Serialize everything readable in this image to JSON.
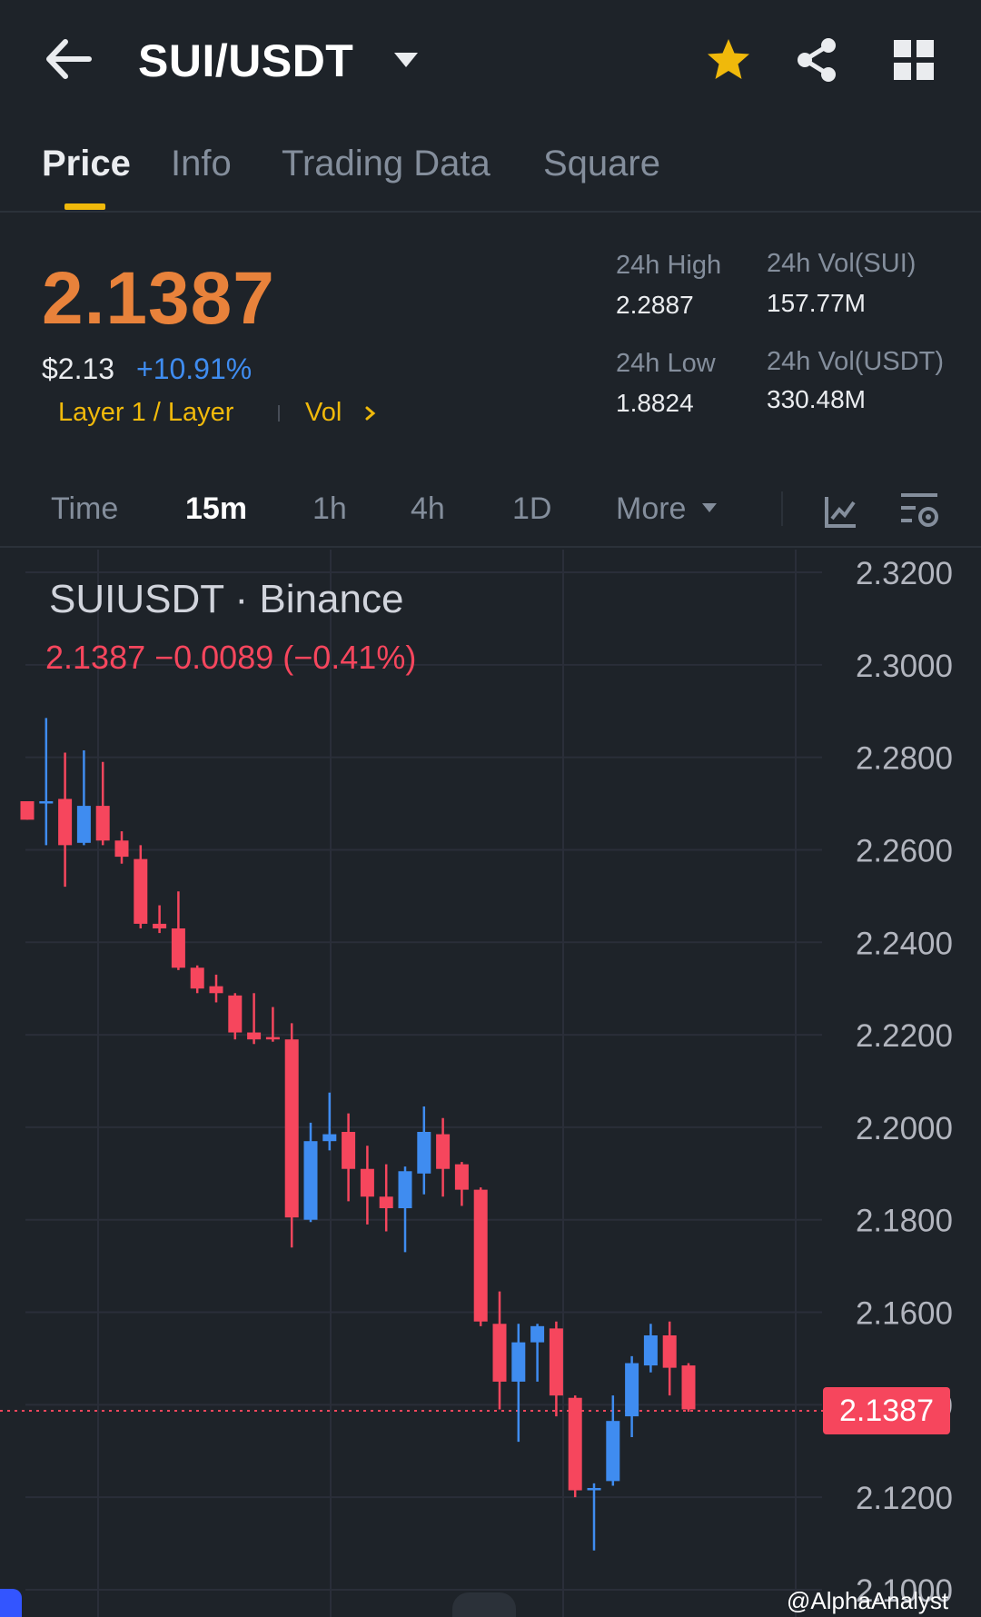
{
  "header": {
    "pair": "SUI/USDT",
    "icons": [
      "back-arrow-icon",
      "dropdown-caret-icon",
      "favorite-star-icon",
      "share-icon",
      "apps-grid-icon"
    ],
    "star_color": "#f0b90b"
  },
  "tabs": [
    {
      "label": "Price",
      "active": true
    },
    {
      "label": "Info",
      "active": false
    },
    {
      "label": "Trading Data",
      "active": false
    },
    {
      "label": "Square",
      "active": false
    }
  ],
  "price": {
    "last": "2.1387",
    "fiat": "$2.13",
    "change_pct": "+10.91%",
    "category": "Layer 1 / Layer",
    "vol_link": "Vol",
    "color": "#e8823b"
  },
  "stats": {
    "high_label": "24h High",
    "high_value": "2.2887",
    "low_label": "24h Low",
    "low_value": "1.8824",
    "vol_base_label": "24h Vol(SUI)",
    "vol_base_value": "157.77M",
    "vol_quote_label": "24h Vol(USDT)",
    "vol_quote_value": "330.48M"
  },
  "intervals": [
    {
      "label": "Time",
      "active": false
    },
    {
      "label": "15m",
      "active": true
    },
    {
      "label": "1h",
      "active": false
    },
    {
      "label": "4h",
      "active": false
    },
    {
      "label": "1D",
      "active": false
    },
    {
      "label": "More",
      "active": false
    }
  ],
  "chart_meta": {
    "symbol": "SUIUSDT · Binance",
    "ohlc_line": "2.1387  −0.0089 (−0.41%)",
    "current_price_tag": "2.1387",
    "watermark": "@AlphaAnalyst",
    "up_color": "#3f8cf0",
    "down_color": "#f6465d"
  },
  "chart_data": {
    "type": "candlestick",
    "interval": "15m",
    "ylim": [
      2.1,
      2.32
    ],
    "y_ticks": [
      "2.3200",
      "2.3000",
      "2.2800",
      "2.2600",
      "2.2400",
      "2.2200",
      "2.2000",
      "2.1800",
      "2.1600",
      "2.1400",
      "2.1200",
      "2.1000"
    ],
    "current_price": 2.1387,
    "candles": [
      {
        "o": 2.2705,
        "h": 2.2705,
        "l": 2.2665,
        "c": 2.2665
      },
      {
        "o": 2.2705,
        "h": 2.2885,
        "l": 2.261,
        "c": 2.2705
      },
      {
        "o": 2.271,
        "h": 2.281,
        "l": 2.252,
        "c": 2.261
      },
      {
        "o": 2.2615,
        "h": 2.2815,
        "l": 2.261,
        "c": 2.2695
      },
      {
        "o": 2.2695,
        "h": 2.279,
        "l": 2.261,
        "c": 2.262
      },
      {
        "o": 2.262,
        "h": 2.264,
        "l": 2.257,
        "c": 2.2585
      },
      {
        "o": 2.258,
        "h": 2.261,
        "l": 2.243,
        "c": 2.244
      },
      {
        "o": 2.244,
        "h": 2.248,
        "l": 2.242,
        "c": 2.243
      },
      {
        "o": 2.243,
        "h": 2.251,
        "l": 2.234,
        "c": 2.2345
      },
      {
        "o": 2.2345,
        "h": 2.235,
        "l": 2.229,
        "c": 2.23
      },
      {
        "o": 2.2305,
        "h": 2.233,
        "l": 2.227,
        "c": 2.229
      },
      {
        "o": 2.2285,
        "h": 2.229,
        "l": 2.219,
        "c": 2.2205
      },
      {
        "o": 2.2205,
        "h": 2.229,
        "l": 2.218,
        "c": 2.219
      },
      {
        "o": 2.2195,
        "h": 2.226,
        "l": 2.2185,
        "c": 2.219
      },
      {
        "o": 2.219,
        "h": 2.2225,
        "l": 2.174,
        "c": 2.1805
      },
      {
        "o": 2.18,
        "h": 2.201,
        "l": 2.1795,
        "c": 2.197
      },
      {
        "o": 2.197,
        "h": 2.2075,
        "l": 2.195,
        "c": 2.1985
      },
      {
        "o": 2.199,
        "h": 2.203,
        "l": 2.184,
        "c": 2.191
      },
      {
        "o": 2.191,
        "h": 2.196,
        "l": 2.179,
        "c": 2.185
      },
      {
        "o": 2.185,
        "h": 2.192,
        "l": 2.1775,
        "c": 2.1825
      },
      {
        "o": 2.1825,
        "h": 2.1915,
        "l": 2.173,
        "c": 2.1905
      },
      {
        "o": 2.19,
        "h": 2.2045,
        "l": 2.1855,
        "c": 2.199
      },
      {
        "o": 2.1985,
        "h": 2.202,
        "l": 2.185,
        "c": 2.191
      },
      {
        "o": 2.192,
        "h": 2.1925,
        "l": 2.183,
        "c": 2.1865
      },
      {
        "o": 2.1865,
        "h": 2.187,
        "l": 2.157,
        "c": 2.158
      },
      {
        "o": 2.1575,
        "h": 2.1645,
        "l": 2.139,
        "c": 2.145
      },
      {
        "o": 2.145,
        "h": 2.1575,
        "l": 2.132,
        "c": 2.1535
      },
      {
        "o": 2.1535,
        "h": 2.1575,
        "l": 2.145,
        "c": 2.157
      },
      {
        "o": 2.1565,
        "h": 2.158,
        "l": 2.1375,
        "c": 2.142
      },
      {
        "o": 2.1415,
        "h": 2.142,
        "l": 2.12,
        "c": 2.1215
      },
      {
        "o": 2.122,
        "h": 2.123,
        "l": 2.1085,
        "c": 2.122
      },
      {
        "o": 2.1235,
        "h": 2.142,
        "l": 2.1225,
        "c": 2.1365
      },
      {
        "o": 2.1375,
        "h": 2.1505,
        "l": 2.133,
        "c": 2.149
      },
      {
        "o": 2.1485,
        "h": 2.1575,
        "l": 2.147,
        "c": 2.155
      },
      {
        "o": 2.155,
        "h": 2.158,
        "l": 2.142,
        "c": 2.148
      },
      {
        "o": 2.1485,
        "h": 2.149,
        "l": 2.1385,
        "c": 2.139
      }
    ]
  }
}
